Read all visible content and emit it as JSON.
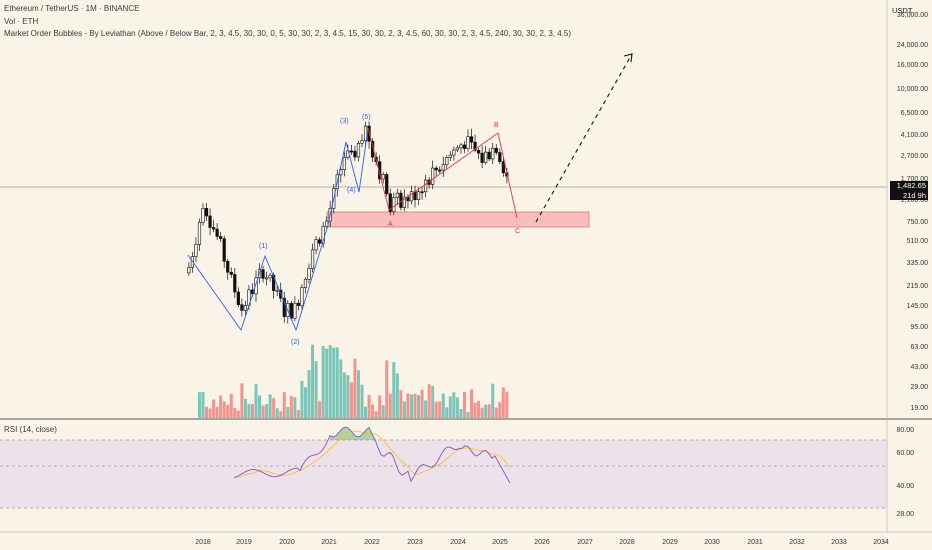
{
  "header": {
    "symbol_line": "Ethereum / TetherUS · 1M · BINANCE",
    "vol_line": "Vol · ETH",
    "indicator_line": "Market Order Bubbles - By Leviathan (Above / Below Bar, 2, 3, 4.5, 30, 30, 0, 5, 30, 30, 2, 3, 4.5, 15, 30, 30, 2, 3, 4.5, 60, 30, 30, 2, 3, 4.5, 240, 30, 30, 2, 3, 4.5)"
  },
  "price_axis": {
    "currency": "USDT",
    "current_price": "1,482.65",
    "countdown": "21d 9h",
    "tick_labels": [
      "36,000.00",
      "24,000.00",
      "16,000.00",
      "10,000.00",
      "6,500.00",
      "4,100.00",
      "2,700.00",
      "1,700.00",
      "1,100.00",
      "750.00",
      "510.00",
      "335.00",
      "215.00",
      "145.00",
      "95.00",
      "63.00",
      "43.00",
      "29.00",
      "19.00"
    ]
  },
  "rsi": {
    "title": "RSI (14, close)",
    "tick_labels": [
      "80.00",
      "60.00",
      "40.00",
      "28.00"
    ]
  },
  "time_axis": {
    "labels": [
      "2018",
      "2019",
      "2020",
      "2021",
      "2022",
      "2023",
      "2024",
      "2025",
      "2026",
      "2027",
      "2028",
      "2029",
      "2030",
      "2031",
      "2032",
      "2033",
      "2034"
    ]
  },
  "waves": {
    "w1": "(1)",
    "w2": "(2)",
    "w3": "(3)",
    "w4": "(4)",
    "w5": "(5)",
    "a": "A",
    "b": "B",
    "c": "C"
  },
  "colors": {
    "up": "#26a69a",
    "down": "#ef5350",
    "candle": "#111111",
    "wave_blue": "#2962ff",
    "wave_red": "#e53935",
    "rsi_line": "#7e57c2",
    "rsi_ma": "#fbc02d",
    "zone_fill": "#f8b4b4",
    "background": "#faf3e8"
  },
  "chart_data": {
    "type": "candlestick",
    "symbol": "ETH/USDT",
    "interval": "1M",
    "y_scale": "log",
    "ylim": [
      19,
      36000
    ],
    "close_path": [
      {
        "t": "2017-09",
        "v": 300
      },
      {
        "t": "2017-12",
        "v": 750
      },
      {
        "t": "2018-01",
        "v": 1120
      },
      {
        "t": "2018-06",
        "v": 450
      },
      {
        "t": "2018-09",
        "v": 230
      },
      {
        "t": "2018-12",
        "v": 133
      },
      {
        "t": "2019-06",
        "v": 290
      },
      {
        "t": "2019-12",
        "v": 130
      },
      {
        "t": "2020-03",
        "v": 133
      },
      {
        "t": "2020-08",
        "v": 430
      },
      {
        "t": "2020-12",
        "v": 737
      },
      {
        "t": "2021-05",
        "v": 2700
      },
      {
        "t": "2021-07",
        "v": 2500
      },
      {
        "t": "2021-11",
        "v": 4630
      },
      {
        "t": "2022-06",
        "v": 1070
      },
      {
        "t": "2022-12",
        "v": 1200
      },
      {
        "t": "2023-06",
        "v": 1930
      },
      {
        "t": "2024-03",
        "v": 3600
      },
      {
        "t": "2024-08",
        "v": 2520
      },
      {
        "t": "2024-12",
        "v": 3330
      },
      {
        "t": "2025-03",
        "v": 1820
      },
      {
        "t": "2025-04",
        "v": 1482.65
      }
    ],
    "target_zone": {
      "low": 800,
      "high": 1100
    },
    "projection": [
      {
        "t": "2025-06",
        "v": 800
      },
      {
        "t": "2027-12",
        "v": 22000
      }
    ],
    "rsi_levels": [
      70,
      50,
      30
    ]
  }
}
